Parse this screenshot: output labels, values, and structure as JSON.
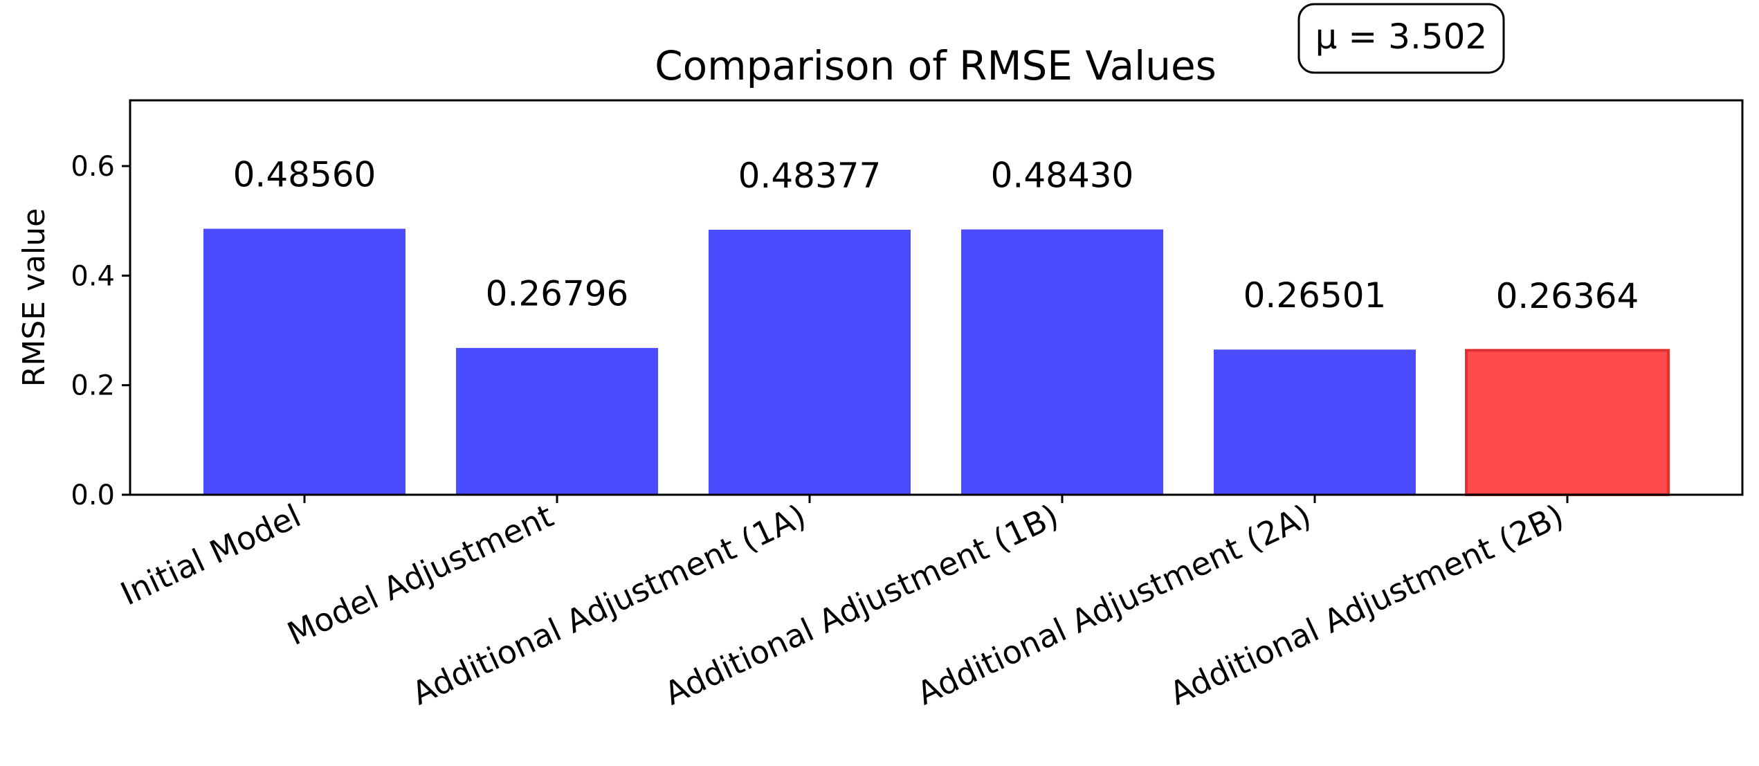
{
  "chart_data": {
    "type": "bar",
    "title": "Comparison of RMSE Values",
    "ylabel": "RMSE value",
    "xlabel": "",
    "ylim": [
      0,
      0.72
    ],
    "yticks": [
      0.0,
      0.2,
      0.4,
      0.6
    ],
    "ytick_labels": [
      "0.0",
      "0.2",
      "0.4",
      "0.6"
    ],
    "categories": [
      "Initial Model",
      "Model Adjustment",
      "Additional Adjustment (1A)",
      "Additional Adjustment (1B)",
      "Additional Adjustment (2A)",
      "Additional Adjustment (2B)"
    ],
    "values": [
      0.4856,
      0.26796,
      0.48377,
      0.4843,
      0.26501,
      0.26364
    ],
    "value_labels": [
      "0.48560",
      "0.26796",
      "0.48377",
      "0.48430",
      "0.26501",
      "0.26364"
    ],
    "bar_colors": [
      "#4b4bff",
      "#4b4bff",
      "#4b4bff",
      "#4b4bff",
      "#4b4bff",
      "#ff4b4b"
    ],
    "highlight_edge_color": "#e03030",
    "grid": false,
    "annotation": {
      "text": "μ = 3.502",
      "placement": "top-right"
    }
  }
}
